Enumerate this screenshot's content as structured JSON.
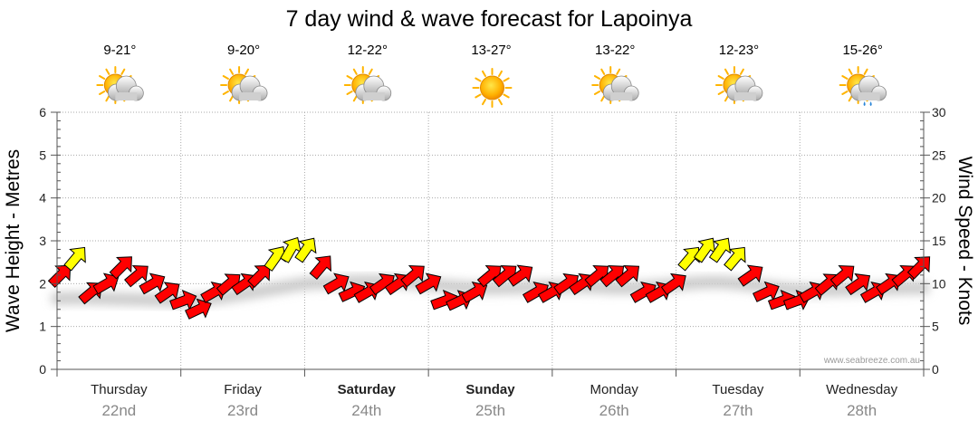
{
  "chart_data": {
    "type": "line",
    "title": "7 day wind & wave forecast for Lapoinya",
    "ylabel_left": "Wave Height - Metres",
    "ylabel_right": "Wind Speed - Knots",
    "ylim_left": [
      0,
      6
    ],
    "ylim_right": [
      0,
      30
    ],
    "left_ticks": [
      "0",
      "1",
      "2",
      "3",
      "4",
      "5",
      "6"
    ],
    "right_ticks": [
      "0",
      "5",
      "10",
      "15",
      "20",
      "25",
      "30"
    ],
    "days": [
      {
        "day": "Thursday",
        "date": "22nd",
        "temp": "9-21°",
        "icon": "partly-cloudy-icon",
        "bold": false
      },
      {
        "day": "Friday",
        "date": "23rd",
        "temp": "9-20°",
        "icon": "partly-cloudy-icon",
        "bold": false
      },
      {
        "day": "Saturday",
        "date": "24th",
        "temp": "12-22°",
        "icon": "partly-cloudy-icon",
        "bold": true
      },
      {
        "day": "Sunday",
        "date": "25th",
        "temp": "13-27°",
        "icon": "sunny-icon",
        "bold": true
      },
      {
        "day": "Monday",
        "date": "26th",
        "temp": "13-22°",
        "icon": "partly-cloudy-icon",
        "bold": false
      },
      {
        "day": "Tuesday",
        "date": "27th",
        "temp": "12-23°",
        "icon": "partly-cloudy-icon",
        "bold": false
      },
      {
        "day": "Wednesday",
        "date": "28th",
        "temp": "15-26°",
        "icon": "shower-icon",
        "bold": false
      }
    ],
    "series": [
      {
        "name": "Wind Speed (knots)",
        "unit": "knots",
        "step_hours": 3,
        "values": [
          11,
          13,
          9,
          10,
          12,
          11,
          10,
          9,
          8,
          7,
          9,
          10,
          10,
          11,
          13,
          14,
          14,
          12,
          10,
          9,
          9,
          10,
          10,
          11,
          10,
          8,
          8,
          9,
          11,
          11,
          11,
          9,
          9,
          10,
          10,
          11,
          11,
          11,
          9,
          9,
          10,
          13,
          14,
          14,
          13,
          11,
          9,
          8,
          8,
          9,
          10,
          11,
          10,
          9,
          10,
          11,
          12
        ],
        "direction_deg": [
          225,
          220,
          230,
          240,
          225,
          230,
          240,
          235,
          250,
          245,
          240,
          230,
          235,
          225,
          215,
          210,
          215,
          220,
          240,
          245,
          240,
          235,
          235,
          230,
          240,
          250,
          245,
          240,
          230,
          230,
          235,
          240,
          240,
          235,
          235,
          230,
          230,
          230,
          240,
          240,
          235,
          220,
          215,
          215,
          220,
          235,
          245,
          250,
          250,
          240,
          230,
          230,
          235,
          240,
          235,
          230,
          225
        ]
      },
      {
        "name": "Wave Height (metres)",
        "unit": "m",
        "step_hours": 3,
        "values": [
          1.65,
          1.66,
          1.66,
          1.65,
          1.64,
          1.63,
          1.62,
          1.61,
          1.6,
          1.62,
          1.65,
          1.7,
          1.76,
          1.82,
          1.88,
          1.94,
          2.0,
          2.02,
          2.03,
          2.05,
          2.06,
          2.06,
          2.05,
          2.02,
          1.98,
          1.95,
          1.92,
          1.9,
          1.89,
          1.9,
          1.91,
          1.92,
          1.93,
          1.93,
          1.93,
          1.92,
          1.9,
          1.9,
          1.92,
          1.95,
          1.98,
          2.01,
          2.03,
          2.03,
          2.0,
          1.96,
          1.92,
          1.88,
          1.85,
          1.84,
          1.85,
          1.86,
          1.87,
          1.88,
          1.89,
          1.9,
          1.9
        ]
      }
    ],
    "wind_color_scale": {
      "low": "#ff0000",
      "high": "#ffff00",
      "threshold_knots": 13
    }
  },
  "watermark": "www.seabreeze.com.au",
  "colors": {
    "grid": "#aaaaaa",
    "axis": "#555555",
    "arrow_stroke": "#000000",
    "wave_shadow": "#cccccc"
  }
}
